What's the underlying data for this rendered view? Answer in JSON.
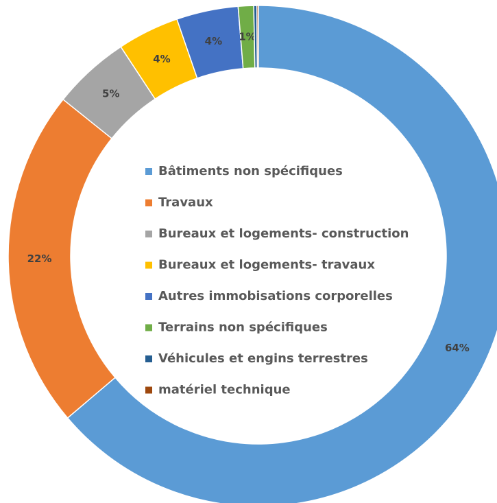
{
  "chart_data": {
    "type": "donut",
    "categories": [
      "Bâtiments non spécifiques",
      "Travaux",
      "Bureaux et logements- construction",
      "Bureaux et logements- travaux",
      "Autres immobisations corporelles",
      "Terrains non spécifiques",
      "Véhicules et engins terrestres",
      "matériel technique"
    ],
    "values": [
      64,
      22,
      5,
      4,
      4,
      1,
      0.2,
      0.1
    ],
    "value_labels": [
      "64%",
      "22%",
      "5%",
      "4%",
      "4%",
      "1%",
      null,
      null
    ],
    "colors": [
      "#5b9bd5",
      "#ed7d31",
      "#a5a5a5",
      "#ffc000",
      "#4472c4",
      "#70ad47",
      "#255e91",
      "#9e480e"
    ],
    "legend": "center"
  }
}
